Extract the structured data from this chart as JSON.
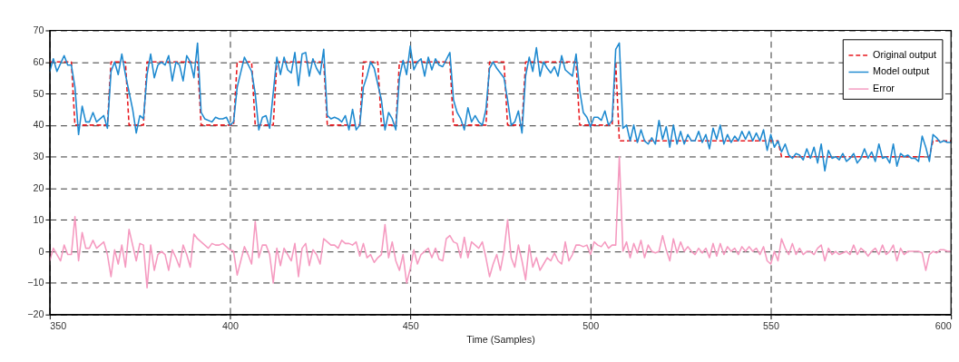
{
  "chart_data": {
    "type": "line",
    "xlabel": "Time (Samples)",
    "xlim": [
      350,
      600
    ],
    "xticks": [
      350,
      400,
      450,
      500,
      550,
      600
    ],
    "ylim": [
      -20,
      70
    ],
    "yticks": [
      -20,
      -10,
      0,
      10,
      20,
      30,
      40,
      50,
      60,
      70
    ],
    "grid": true,
    "legend": "top right",
    "series": [
      {
        "name": "Original output",
        "color": "#e8191f",
        "line_style": "dashed",
        "x": [
          350,
          356,
          357,
          366,
          367,
          371,
          372,
          376,
          377,
          391,
          392,
          401,
          402,
          406,
          407,
          412,
          413,
          426,
          427,
          436,
          437,
          441,
          442,
          446,
          447,
          461,
          462,
          471,
          472,
          476,
          477,
          481,
          482,
          496,
          497,
          506,
          507,
          508,
          552,
          553,
          594,
          595,
          600
        ],
        "values": [
          60,
          60,
          40,
          40,
          60,
          60,
          40,
          40,
          60,
          60,
          40,
          40,
          60,
          60,
          40,
          40,
          60,
          60,
          40,
          40,
          60,
          60,
          40,
          40,
          60,
          60,
          40,
          40,
          60,
          60,
          40,
          40,
          60,
          60,
          40,
          40,
          60,
          35,
          35,
          30,
          30,
          35,
          35
        ]
      },
      {
        "name": "Model output",
        "color": "#1f8ad0",
        "line_style": "solid",
        "x": [
          350,
          351,
          352,
          354,
          355,
          356,
          357,
          358,
          359,
          360,
          361,
          362,
          363,
          364,
          365,
          366,
          367,
          368,
          369,
          370,
          371,
          373,
          374,
          375,
          376,
          377,
          378,
          379,
          380,
          381,
          382,
          383,
          384,
          385,
          386,
          387,
          388,
          389,
          390,
          391,
          392,
          393,
          395,
          396,
          397,
          398,
          399,
          400,
          401,
          402,
          404,
          406,
          407,
          408,
          409,
          410,
          411,
          413,
          414,
          415,
          416,
          417,
          418,
          419,
          420,
          421,
          422,
          423,
          424,
          425,
          426,
          427,
          428,
          429,
          430,
          431,
          432,
          433,
          434,
          435,
          436,
          437,
          438,
          439,
          440,
          442,
          443,
          444,
          445,
          446,
          447,
          448,
          449,
          450,
          451,
          452,
          453,
          454,
          455,
          456,
          457,
          458,
          459,
          461,
          462,
          463,
          464,
          465,
          466,
          467,
          468,
          469,
          470,
          471,
          472,
          473,
          474,
          476,
          477,
          478,
          479,
          480,
          481,
          482,
          483,
          484,
          485,
          486,
          487,
          488,
          489,
          490,
          491,
          492,
          493,
          495,
          496,
          497,
          498,
          499,
          500,
          501,
          502,
          503,
          504,
          505,
          506,
          507,
          508,
          509,
          510,
          511,
          512,
          513,
          514,
          515,
          516,
          517,
          518,
          519,
          520,
          521,
          522,
          523,
          524,
          525,
          526,
          527,
          528,
          529,
          530,
          531,
          532,
          533,
          534,
          535,
          536,
          537,
          538,
          539,
          540,
          541,
          542,
          543,
          544,
          545,
          546,
          547,
          548,
          549,
          550,
          551,
          552,
          553,
          554,
          555,
          556,
          557,
          558,
          559,
          560,
          561,
          562,
          563,
          564,
          565,
          566,
          567,
          568,
          569,
          570,
          571,
          572,
          573,
          574,
          575,
          576,
          577,
          578,
          579,
          580,
          581,
          582,
          583,
          584,
          585,
          586,
          587,
          588,
          589,
          590,
          591,
          592,
          593,
          594,
          595,
          596,
          597,
          598,
          599,
          600
        ],
        "values": [
          57,
          61,
          57,
          62,
          59,
          59,
          52,
          37,
          46,
          41,
          41,
          44,
          41,
          42,
          43,
          39,
          57,
          60,
          56,
          62.5,
          56,
          45,
          37.5,
          43,
          42,
          56,
          62.5,
          55,
          59,
          60,
          59,
          62,
          54,
          60,
          59,
          54,
          62,
          60,
          55,
          66,
          44,
          42,
          41,
          42.5,
          42,
          42,
          42.5,
          40,
          41,
          52,
          61.5,
          57,
          50,
          38.5,
          42.5,
          43,
          39,
          61.5,
          56,
          61.5,
          57.5,
          56.5,
          63,
          52.5,
          62.5,
          63,
          55.5,
          61,
          58,
          56,
          64,
          43,
          42,
          42.5,
          42,
          41,
          43,
          38.5,
          45,
          38.5,
          40,
          52,
          55.5,
          60,
          58,
          48,
          38.5,
          44,
          42,
          38.5,
          55,
          60.5,
          56,
          65,
          57.5,
          60,
          61,
          55.5,
          61.5,
          57.5,
          61,
          59,
          58.5,
          63,
          48,
          44,
          42,
          38.5,
          45.5,
          41,
          43,
          41,
          40,
          45,
          58,
          60,
          58,
          55,
          48,
          40,
          41,
          44.5,
          37.5,
          55.5,
          61.5,
          57,
          64.5,
          55.5,
          60,
          58,
          56.5,
          58.5,
          55.5,
          62,
          57.5,
          55.5,
          62.5,
          51,
          44,
          42.5,
          39.5,
          42.5,
          42.5,
          41.5,
          44.5,
          40,
          41.5,
          64,
          66,
          39,
          40,
          35,
          40,
          34.5,
          38.5,
          35,
          34,
          36,
          34,
          41.5,
          35.5,
          39.5,
          33,
          40,
          34,
          38,
          34,
          37,
          35,
          35,
          38,
          34.5,
          37,
          32.5,
          39,
          35.5,
          40,
          34,
          37,
          34.5,
          36.5,
          35,
          38,
          35.5,
          38,
          35,
          37.5,
          35,
          38.5,
          32,
          37,
          33,
          35,
          31.5,
          34,
          30.5,
          29.5,
          31,
          30.5,
          29,
          32.5,
          29.5,
          33,
          28,
          34,
          25.5,
          32,
          29.5,
          30,
          29,
          31,
          28.5,
          29.5,
          31,
          28,
          29.5,
          32.5,
          29.5,
          31.5,
          28.5,
          34,
          29.5,
          30,
          28,
          34,
          27,
          31,
          30,
          30.5,
          29.5,
          29.5,
          28.5,
          36.5,
          33,
          28.5,
          37,
          36,
          34.5,
          35,
          34.5,
          34.5
        ]
      },
      {
        "name": "Error",
        "color": "#f59ac0",
        "line_style": "solid",
        "x": [
          350,
          351,
          352,
          353,
          354,
          355,
          356,
          357,
          358,
          359,
          360,
          361,
          362,
          363,
          364,
          365,
          366,
          367,
          368,
          369,
          370,
          371,
          372,
          373,
          374,
          375,
          376,
          377,
          378,
          379,
          380,
          381,
          382,
          383,
          384,
          385,
          386,
          387,
          388,
          389,
          390,
          391,
          392,
          393,
          394,
          395,
          396,
          397,
          398,
          399,
          400,
          401,
          402,
          403,
          404,
          405,
          406,
          407,
          408,
          409,
          410,
          411,
          412,
          413,
          414,
          415,
          416,
          417,
          418,
          419,
          420,
          421,
          422,
          423,
          424,
          425,
          426,
          427,
          428,
          429,
          430,
          431,
          432,
          433,
          434,
          435,
          436,
          437,
          438,
          439,
          440,
          441,
          442,
          443,
          444,
          445,
          446,
          447,
          448,
          449,
          450,
          451,
          452,
          453,
          454,
          455,
          456,
          457,
          458,
          459,
          460,
          461,
          462,
          463,
          464,
          465,
          466,
          467,
          468,
          469,
          470,
          471,
          472,
          473,
          474,
          475,
          476,
          477,
          478,
          479,
          480,
          481,
          482,
          483,
          484,
          485,
          486,
          487,
          488,
          489,
          490,
          491,
          492,
          493,
          494,
          495,
          496,
          497,
          498,
          499,
          500,
          501,
          502,
          503,
          504,
          505,
          506,
          507,
          508,
          509,
          510,
          511,
          512,
          513,
          514,
          515,
          516,
          517,
          518,
          519,
          520,
          521,
          522,
          523,
          524,
          525,
          526,
          527,
          528,
          529,
          530,
          531,
          532,
          533,
          534,
          535,
          536,
          537,
          538,
          539,
          540,
          541,
          542,
          543,
          544,
          545,
          546,
          547,
          548,
          549,
          550,
          551,
          552,
          553,
          554,
          555,
          556,
          557,
          558,
          559,
          560,
          561,
          562,
          563,
          564,
          565,
          566,
          567,
          568,
          569,
          570,
          571,
          572,
          573,
          574,
          575,
          576,
          577,
          578,
          579,
          580,
          581,
          582,
          583,
          584,
          585,
          586,
          587,
          588,
          589,
          590,
          591,
          592,
          593,
          594,
          595,
          596,
          597,
          598,
          599,
          600
        ],
        "values": [
          -3,
          1,
          -1,
          -3,
          2,
          -1,
          -1,
          11,
          -3,
          6,
          1,
          1,
          3.5,
          1,
          2,
          3,
          -1,
          -8,
          0.5,
          -4,
          2,
          -5,
          7,
          2,
          -3,
          2.5,
          2,
          -11.5,
          2,
          -6,
          -1,
          0,
          -1,
          -6,
          0.5,
          -2,
          -5,
          2,
          -1,
          -5,
          5.5,
          4,
          3,
          2,
          1,
          2.5,
          2,
          2,
          2.5,
          1.5,
          0.5,
          0,
          -7.5,
          -3,
          1.5,
          -1,
          -4,
          9.5,
          -2,
          2,
          2,
          -1,
          -10,
          1,
          -4.5,
          1,
          -1,
          -3,
          2.5,
          -8,
          1,
          2.5,
          -4.5,
          0.5,
          -1,
          -4,
          4,
          3,
          2,
          2,
          1,
          3.5,
          2.5,
          2.5,
          2,
          3,
          -1.5,
          2.5,
          -2,
          -1,
          -3.5,
          -2,
          -1,
          8.5,
          -2,
          3,
          -3,
          -6,
          -1,
          -10,
          -5.5,
          0.5,
          -4,
          -1,
          0,
          1,
          -2,
          1,
          -2.5,
          -3,
          4,
          5,
          3,
          2.5,
          -2,
          4.5,
          -2,
          3,
          2,
          1,
          3,
          -2,
          -8,
          -4,
          -1,
          -6,
          0,
          10,
          -2,
          -5,
          2,
          -3,
          -9,
          2,
          -5,
          -2,
          -6,
          -4,
          -2,
          -3,
          -0.5,
          -3,
          -4,
          3,
          -3,
          -1,
          2,
          2,
          1.5,
          2,
          -1,
          3,
          2,
          1.5,
          3,
          1,
          2,
          2,
          30,
          0,
          3,
          -2,
          2.5,
          -0.5,
          3.5,
          -2,
          2,
          0,
          -0.5,
          0,
          5,
          0.5,
          -3,
          4,
          -0.5,
          3,
          0,
          1.5,
          0,
          -1,
          1,
          -0.5,
          1,
          -2,
          2.5,
          -1.5,
          2.5,
          -1,
          1.5,
          0,
          1,
          -1,
          1.5,
          0,
          1.5,
          0,
          1,
          -1,
          1.5,
          -3,
          -4,
          0,
          -3,
          4,
          1,
          -1,
          2.5,
          -1,
          1,
          -1,
          0,
          0,
          -1,
          1,
          2,
          -3,
          1,
          -1,
          0,
          -1,
          -0.5,
          0,
          -1,
          2,
          -1,
          1,
          0,
          -1.5,
          0,
          1,
          -1,
          2,
          -1,
          0,
          2,
          -3,
          1,
          -1,
          0,
          0,
          0,
          0,
          -0.5,
          -6,
          -1,
          0,
          -0.5,
          0.5,
          0.5,
          0,
          0
        ]
      }
    ]
  }
}
